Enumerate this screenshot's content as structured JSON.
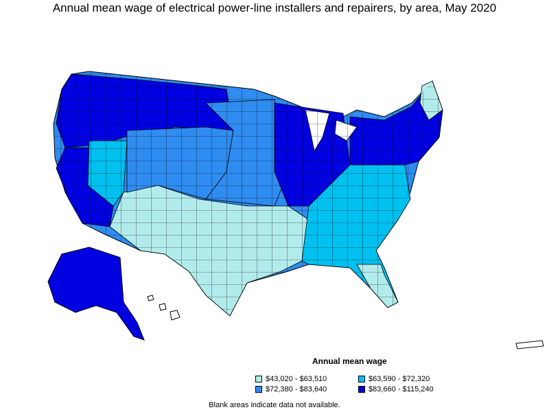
{
  "title": "Annual mean wage of electrical power-line installers and repairers, by area, May 2020",
  "legend": {
    "title": "Annual mean wage",
    "items": [
      {
        "label": "$43,020 - $63,510",
        "color": "#b2ebeb"
      },
      {
        "label": "$63,590 - $72,320",
        "color": "#00c0f0"
      },
      {
        "label": "$72,380 - $83,640",
        "color": "#2f8cf0"
      },
      {
        "label": "$83,660 - $115,240",
        "color": "#0000e0"
      }
    ]
  },
  "note": "Blank areas indicate data not available.",
  "colors": {
    "outline": "#000000",
    "blank": "#ffffff"
  }
}
